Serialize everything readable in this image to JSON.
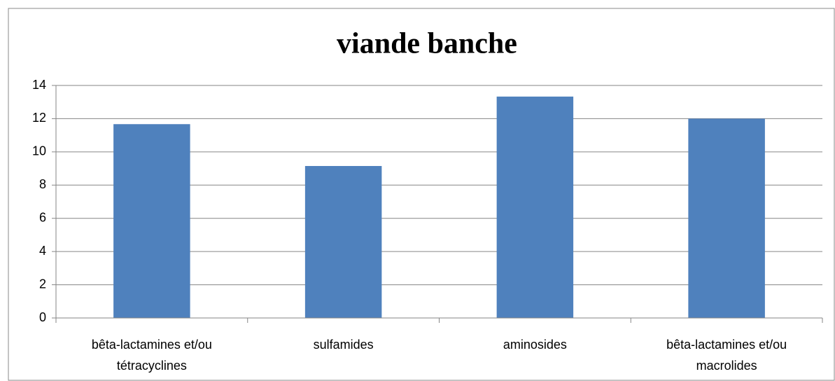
{
  "chart_data": {
    "type": "bar",
    "title": "viande banche",
    "categories": [
      "bêta-lactamines et/ou tétracyclines",
      "sulfamides",
      "aminosides",
      "bêta-lactamines et/ou macrolides"
    ],
    "values": [
      11.67,
      9.15,
      13.33,
      12
    ],
    "color": "#4f81bd",
    "ylim": [
      0,
      14
    ],
    "yticks": [
      0,
      2,
      4,
      6,
      8,
      10,
      12,
      14
    ],
    "grid": true
  }
}
